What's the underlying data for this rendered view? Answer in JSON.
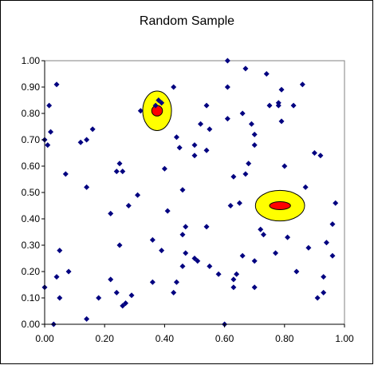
{
  "chart_data": {
    "type": "scatter",
    "title": "Random Sample",
    "xlabel": "",
    "ylabel": "",
    "xlim": [
      0,
      1
    ],
    "ylim": [
      0,
      1
    ],
    "x_ticks": [
      "0.00",
      "0.20",
      "0.40",
      "0.60",
      "0.80",
      "1.00"
    ],
    "y_ticks": [
      "0.00",
      "0.10",
      "0.20",
      "0.30",
      "0.40",
      "0.50",
      "0.60",
      "0.70",
      "0.80",
      "0.90",
      "1.00"
    ],
    "grid": false,
    "legend": "none",
    "marker": "diamond",
    "marker_color": "#000080",
    "highlights": [
      {
        "cx": 0.375,
        "cy": 0.81,
        "rx": 0.048,
        "ry": 0.075,
        "outer_color": "#FFFF00",
        "inner_color": "#FF0000",
        "inner_rx": 0.018,
        "inner_ry": 0.02
      },
      {
        "cx": 0.785,
        "cy": 0.45,
        "rx": 0.082,
        "ry": 0.058,
        "outer_color": "#FFFF00",
        "inner_color": "#FF0000",
        "inner_rx": 0.035,
        "inner_ry": 0.015
      }
    ],
    "points": [
      [
        0.0,
        0.7
      ],
      [
        0.01,
        0.68
      ],
      [
        0.015,
        0.83
      ],
      [
        0.02,
        0.73
      ],
      [
        0.04,
        0.91
      ],
      [
        0.07,
        0.57
      ],
      [
        0.0,
        0.14
      ],
      [
        0.04,
        0.18
      ],
      [
        0.05,
        0.28
      ],
      [
        0.05,
        0.1
      ],
      [
        0.08,
        0.2
      ],
      [
        0.03,
        0.0
      ],
      [
        0.12,
        0.69
      ],
      [
        0.14,
        0.7
      ],
      [
        0.16,
        0.74
      ],
      [
        0.14,
        0.52
      ],
      [
        0.14,
        0.02
      ],
      [
        0.18,
        0.1
      ],
      [
        0.24,
        0.58
      ],
      [
        0.25,
        0.61
      ],
      [
        0.26,
        0.58
      ],
      [
        0.22,
        0.42
      ],
      [
        0.28,
        0.45
      ],
      [
        0.31,
        0.49
      ],
      [
        0.25,
        0.3
      ],
      [
        0.22,
        0.17
      ],
      [
        0.24,
        0.12
      ],
      [
        0.27,
        0.08
      ],
      [
        0.29,
        0.11
      ],
      [
        0.26,
        0.07
      ],
      [
        0.32,
        0.81
      ],
      [
        0.37,
        0.83
      ],
      [
        0.38,
        0.85
      ],
      [
        0.39,
        0.84
      ],
      [
        0.43,
        0.9
      ],
      [
        0.4,
        0.59
      ],
      [
        0.44,
        0.71
      ],
      [
        0.45,
        0.67
      ],
      [
        0.41,
        0.43
      ],
      [
        0.46,
        0.51
      ],
      [
        0.47,
        0.37
      ],
      [
        0.46,
        0.34
      ],
      [
        0.47,
        0.27
      ],
      [
        0.46,
        0.22
      ],
      [
        0.44,
        0.16
      ],
      [
        0.39,
        0.28
      ],
      [
        0.36,
        0.32
      ],
      [
        0.36,
        0.16
      ],
      [
        0.43,
        0.12
      ],
      [
        0.5,
        0.25
      ],
      [
        0.51,
        0.24
      ],
      [
        0.52,
        0.76
      ],
      [
        0.54,
        0.83
      ],
      [
        0.55,
        0.74
      ],
      [
        0.5,
        0.68
      ],
      [
        0.5,
        0.64
      ],
      [
        0.54,
        0.66
      ],
      [
        0.54,
        0.37
      ],
      [
        0.55,
        0.22
      ],
      [
        0.58,
        0.19
      ],
      [
        0.6,
        0.0
      ],
      [
        0.61,
        1.0
      ],
      [
        0.61,
        0.9
      ],
      [
        0.61,
        0.78
      ],
      [
        0.62,
        0.45
      ],
      [
        0.63,
        0.56
      ],
      [
        0.65,
        0.46
      ],
      [
        0.63,
        0.17
      ],
      [
        0.64,
        0.19
      ],
      [
        0.63,
        0.14
      ],
      [
        0.66,
        0.26
      ],
      [
        0.67,
        0.97
      ],
      [
        0.66,
        0.8
      ],
      [
        0.69,
        0.76
      ],
      [
        0.7,
        0.72
      ],
      [
        0.7,
        0.68
      ],
      [
        0.68,
        0.61
      ],
      [
        0.67,
        0.57
      ],
      [
        0.7,
        0.24
      ],
      [
        0.7,
        0.14
      ],
      [
        0.72,
        0.36
      ],
      [
        0.73,
        0.34
      ],
      [
        0.74,
        0.95
      ],
      [
        0.75,
        0.83
      ],
      [
        0.78,
        0.84
      ],
      [
        0.78,
        0.83
      ],
      [
        0.79,
        0.89
      ],
      [
        0.79,
        0.77
      ],
      [
        0.8,
        0.6
      ],
      [
        0.77,
        0.27
      ],
      [
        0.81,
        0.33
      ],
      [
        0.83,
        0.83
      ],
      [
        0.86,
        0.91
      ],
      [
        0.87,
        0.52
      ],
      [
        0.84,
        0.2
      ],
      [
        0.88,
        0.29
      ],
      [
        0.9,
        0.65
      ],
      [
        0.92,
        0.64
      ],
      [
        0.91,
        0.1
      ],
      [
        0.93,
        0.12
      ],
      [
        0.93,
        0.18
      ],
      [
        0.94,
        0.31
      ],
      [
        0.96,
        0.38
      ],
      [
        0.97,
        0.46
      ],
      [
        0.96,
        0.26
      ]
    ]
  }
}
